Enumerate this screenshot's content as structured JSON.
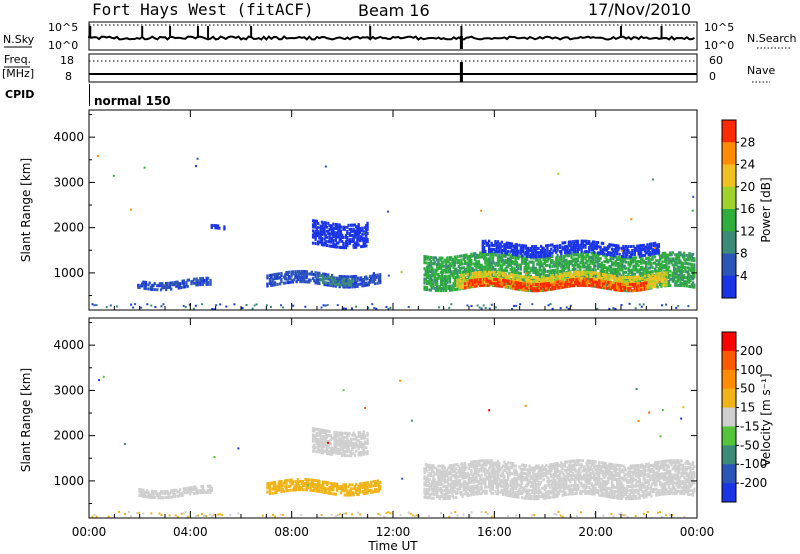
{
  "header": {
    "station": "Fort Hays West (fitACF)",
    "beam": "Beam 16",
    "date": "17/Nov/2010"
  },
  "status_panels": {
    "nsky_label": "N.Sky",
    "nsearch_label": "N.Search",
    "nsky_ticks": [
      "10^5",
      "10^0"
    ],
    "nsearch_ticks": [
      "10^5",
      "10^0"
    ],
    "freq_label": "Freq.",
    "freq_unit": "[MHz]",
    "freq_ticks": [
      "18",
      "8"
    ],
    "nave_label": "Nave",
    "nave_ticks": [
      "60",
      "0"
    ],
    "cpid_label": "CPID",
    "cpid_value": "normal 150"
  },
  "chart_data": [
    {
      "type": "heatmap",
      "panel": "power",
      "ylabel": "Slant Range [km]",
      "ylim": [
        180,
        4600
      ],
      "yticks": [
        1000,
        2000,
        3000,
        4000
      ],
      "xlim": [
        "00:00",
        "24:00"
      ],
      "colorbar": {
        "label": "Power [dB]",
        "ticks": [
          "4",
          "8",
          "12",
          "16",
          "20",
          "24",
          "28"
        ],
        "colors": [
          "#1a35e6",
          "#2c55b8",
          "#3c8a78",
          "#2fae3c",
          "#9fd22a",
          "#f0c020",
          "#ff8c00",
          "#ff2a00"
        ]
      },
      "regions": [
        {
          "t0": 1.9,
          "t1": 4.8,
          "r0": 720,
          "r1": 880,
          "level": 1
        },
        {
          "t0": 4.8,
          "t1": 5.3,
          "r0": 1980,
          "r1": 2040,
          "level": 0
        },
        {
          "t0": 7.0,
          "t1": 11.5,
          "r0": 780,
          "r1": 1030,
          "level": 1
        },
        {
          "t0": 9.0,
          "t1": 10.4,
          "r0": 820,
          "r1": 1000,
          "level": 2
        },
        {
          "t0": 8.8,
          "t1": 11.0,
          "r0": 1650,
          "r1": 2150,
          "level": 0
        },
        {
          "t0": 13.2,
          "t1": 23.9,
          "r0": 700,
          "r1": 1450,
          "level": 3
        },
        {
          "t0": 14.5,
          "t1": 22.8,
          "r0": 720,
          "r1": 1000,
          "level": 5
        },
        {
          "t0": 14.8,
          "t1": 22.0,
          "r0": 700,
          "r1": 850,
          "level": 7
        },
        {
          "t0": 15.5,
          "t1": 22.5,
          "r0": 1450,
          "r1": 1700,
          "level": 0
        }
      ]
    },
    {
      "type": "heatmap",
      "panel": "velocity",
      "ylabel": "Slant Range [km]",
      "ylim": [
        180,
        4600
      ],
      "yticks": [
        1000,
        2000,
        3000,
        4000
      ],
      "xlim": [
        "00:00",
        "24:00"
      ],
      "xticks": [
        "00:00",
        "04:00",
        "08:00",
        "12:00",
        "16:00",
        "20:00",
        "00:00"
      ],
      "xlabel": "Time UT",
      "colorbar": {
        "label": "Velocity [m s⁻¹]",
        "ticks": [
          "200",
          "100",
          "50",
          "15",
          "-15",
          "-50",
          "-100",
          "-200"
        ],
        "colors": [
          "#1a35e6",
          "#2c55b8",
          "#3c8a78",
          "#55c43a",
          "#cfcfcf",
          "#f0b418",
          "#ff8c00",
          "#ff5a00",
          "#ff0000"
        ]
      },
      "regions": [
        {
          "t0": 1.9,
          "t1": 4.8,
          "r0": 720,
          "r1": 880,
          "level": 4
        },
        {
          "t0": 7.0,
          "t1": 11.5,
          "r0": 780,
          "r1": 1030,
          "level": 5
        },
        {
          "t0": 8.8,
          "t1": 11.0,
          "r0": 1650,
          "r1": 2150,
          "level": 4
        },
        {
          "t0": 13.2,
          "t1": 23.9,
          "r0": 700,
          "r1": 1450,
          "level": 4
        }
      ]
    }
  ],
  "colors": {
    "frame": "#000000",
    "background": "#ffffff"
  }
}
